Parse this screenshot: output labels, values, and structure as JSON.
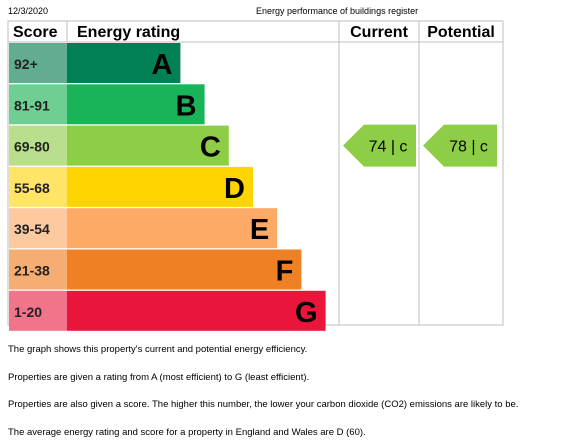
{
  "header": {
    "date": "12/3/2020",
    "register": "Energy performance of buildings register"
  },
  "chart_data": {
    "type": "bar",
    "columns": {
      "score": "Score",
      "rating": "Energy rating",
      "current": "Current",
      "potential": "Potential"
    },
    "bands": [
      {
        "letter": "A",
        "range": "92+",
        "length": 7,
        "color": "#008054",
        "score_bg": "#62ad8f"
      },
      {
        "letter": "B",
        "range": "81-91",
        "length": 8,
        "color": "#19b459",
        "score_bg": "#6fcf93"
      },
      {
        "letter": "C",
        "range": "69-80",
        "length": 9,
        "color": "#8dce46",
        "score_bg": "#badf8c"
      },
      {
        "letter": "D",
        "range": "55-68",
        "length": 10,
        "color": "#ffd500",
        "score_bg": "#ffe466"
      },
      {
        "letter": "E",
        "range": "39-54",
        "length": 11,
        "color": "#fcaa65",
        "score_bg": "#fdcaa0"
      },
      {
        "letter": "F",
        "range": "21-38",
        "length": 12,
        "color": "#ef8023",
        "score_bg": "#f5ad73"
      },
      {
        "letter": "G",
        "range": "1-20",
        "length": 13,
        "color": "#e9153b",
        "score_bg": "#f0758b"
      }
    ],
    "current": {
      "score": 74,
      "band": "C",
      "label": "74 |  c",
      "color": "#8dce46"
    },
    "potential": {
      "score": 78,
      "band": "C",
      "label": "78 |  c",
      "color": "#8dce46"
    }
  },
  "notes": [
    "The graph shows this property's current and potential energy efficiency.",
    "Properties are given a rating from A (most efficient) to G (least efficient).",
    "Properties are also given a score. The higher this number, the lower your carbon dioxide (CO2) emissions are likely to be.",
    "The average energy rating and score for a property in England and Wales are D (60)."
  ]
}
